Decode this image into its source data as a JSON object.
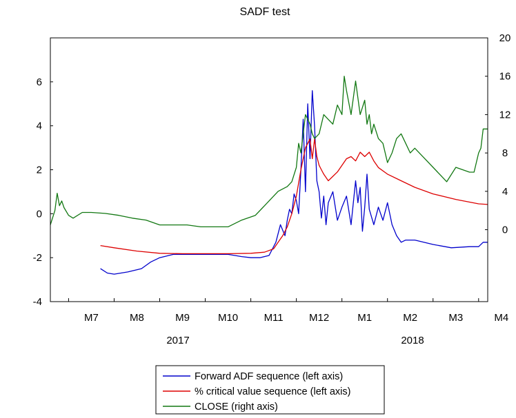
{
  "chart_data": {
    "type": "line",
    "title": "SADF test",
    "x_ticks": [
      "M7",
      "M8",
      "M9",
      "M10",
      "M11",
      "M12",
      "M1",
      "M2",
      "M3",
      "M4"
    ],
    "year_labels": [
      "2017",
      "2018"
    ],
    "left_axis": {
      "ylim": [
        -4,
        8
      ],
      "ticks": [
        "-4",
        "-2",
        "0",
        "2",
        "4",
        "6"
      ]
    },
    "right_axis": {
      "ylim": [
        -7.5,
        20
      ],
      "ticks": [
        "0",
        "4",
        "8",
        "12",
        "16",
        "20"
      ]
    },
    "x_range": [
      6.6,
      16.2
    ],
    "colors": {
      "forward_adf": "#0000cc",
      "critical": "#dd0000",
      "close": "#117711"
    },
    "legend": [
      "Forward ADF sequence (left axis)",
      "% critical value sequence (left axis)",
      "CLOSE (right axis)"
    ],
    "series": [
      {
        "name": "Forward ADF sequence (left axis)",
        "axis": "left",
        "x": [
          7.7,
          7.85,
          8.0,
          8.3,
          8.6,
          8.8,
          9.0,
          9.3,
          9.6,
          9.9,
          10.2,
          10.5,
          10.8,
          11.0,
          11.2,
          11.4,
          11.55,
          11.65,
          11.75,
          11.8,
          11.85,
          11.9,
          11.95,
          12.0,
          12.05,
          12.1,
          12.15,
          12.2,
          12.25,
          12.3,
          12.35,
          12.4,
          12.45,
          12.5,
          12.55,
          12.6,
          12.65,
          12.7,
          12.8,
          12.9,
          13.0,
          13.1,
          13.2,
          13.3,
          13.35,
          13.4,
          13.45,
          13.5,
          13.55,
          13.6,
          13.7,
          13.8,
          13.9,
          14.0,
          14.1,
          14.2,
          14.3,
          14.4,
          14.6,
          15.0,
          15.4,
          15.8,
          16.0,
          16.1,
          16.2
        ],
        "y": [
          -2.5,
          -2.7,
          -2.75,
          -2.65,
          -2.5,
          -2.2,
          -2.0,
          -1.85,
          -1.85,
          -1.85,
          -1.85,
          -1.85,
          -1.95,
          -2.0,
          -2.0,
          -1.9,
          -1.3,
          -0.5,
          -1.0,
          -0.3,
          0.2,
          0.0,
          0.9,
          0.6,
          0.0,
          2.0,
          4.3,
          1.0,
          5.0,
          2.5,
          5.6,
          4.0,
          1.5,
          1.0,
          -0.2,
          0.8,
          -0.5,
          0.5,
          1.0,
          -0.3,
          0.3,
          0.8,
          -0.5,
          1.5,
          0.5,
          1.2,
          -0.8,
          0.3,
          1.8,
          0.2,
          -0.5,
          0.3,
          -0.3,
          0.5,
          -0.5,
          -1.0,
          -1.3,
          -1.2,
          -1.2,
          -1.4,
          -1.55,
          -1.5,
          -1.5,
          -1.3,
          -1.3
        ]
      },
      {
        "name": "% critical value sequence (left axis)",
        "axis": "left",
        "x": [
          7.7,
          8.0,
          8.5,
          9.0,
          9.5,
          10.0,
          10.5,
          11.0,
          11.3,
          11.5,
          11.6,
          11.7,
          11.8,
          11.9,
          12.0,
          12.1,
          12.2,
          12.3,
          12.35,
          12.4,
          12.45,
          12.5,
          12.55,
          12.6,
          12.7,
          12.8,
          12.9,
          13.0,
          13.1,
          13.2,
          13.3,
          13.4,
          13.5,
          13.6,
          13.7,
          13.8,
          14.0,
          14.3,
          14.6,
          15.0,
          15.5,
          16.0,
          16.2
        ],
        "y": [
          -1.45,
          -1.55,
          -1.7,
          -1.8,
          -1.82,
          -1.82,
          -1.82,
          -1.8,
          -1.75,
          -1.6,
          -1.3,
          -1.0,
          -0.6,
          0.0,
          0.8,
          2.0,
          3.0,
          3.4,
          2.5,
          3.4,
          2.6,
          2.2,
          2.0,
          1.8,
          1.5,
          1.7,
          1.9,
          2.2,
          2.5,
          2.6,
          2.4,
          2.8,
          2.6,
          2.8,
          2.4,
          2.1,
          1.8,
          1.5,
          1.2,
          0.9,
          0.65,
          0.45,
          0.42
        ]
      },
      {
        "name": "CLOSE (right axis)",
        "axis": "right",
        "x": [
          6.6,
          6.7,
          6.75,
          6.8,
          6.85,
          6.9,
          7.0,
          7.1,
          7.3,
          7.5,
          7.8,
          8.1,
          8.4,
          8.7,
          9.0,
          9.3,
          9.6,
          9.9,
          10.2,
          10.5,
          10.8,
          11.1,
          11.4,
          11.6,
          11.8,
          11.9,
          12.0,
          12.05,
          12.1,
          12.2,
          12.3,
          12.35,
          12.4,
          12.5,
          12.6,
          12.7,
          12.8,
          12.9,
          12.95,
          13.0,
          13.05,
          13.1,
          13.2,
          13.3,
          13.4,
          13.5,
          13.55,
          13.6,
          13.65,
          13.7,
          13.8,
          13.9,
          14.0,
          14.1,
          14.2,
          14.3,
          14.4,
          14.5,
          14.6,
          14.8,
          15.0,
          15.1,
          15.3,
          15.5,
          15.8,
          15.9,
          16.0,
          16.05,
          16.1,
          16.2
        ],
        "y": [
          0.5,
          2.0,
          3.8,
          2.5,
          3.0,
          2.3,
          1.5,
          1.2,
          1.8,
          1.8,
          1.7,
          1.5,
          1.2,
          1.0,
          0.5,
          0.5,
          0.5,
          0.3,
          0.3,
          0.3,
          1.0,
          1.5,
          3.0,
          4.0,
          4.5,
          5.0,
          6.5,
          9.0,
          8.0,
          12.0,
          11.0,
          10.0,
          9.5,
          10.0,
          12.0,
          11.5,
          11.0,
          13.0,
          12.5,
          12.0,
          16.0,
          14.5,
          12.0,
          15.5,
          12.0,
          13.5,
          11.0,
          12.0,
          10.0,
          11.0,
          9.5,
          9.0,
          7.0,
          8.0,
          9.5,
          10.0,
          9.0,
          8.0,
          8.5,
          7.5,
          6.5,
          6.0,
          5.0,
          6.5,
          6.0,
          6.0,
          8.0,
          8.5,
          10.5,
          10.5
        ]
      }
    ]
  }
}
